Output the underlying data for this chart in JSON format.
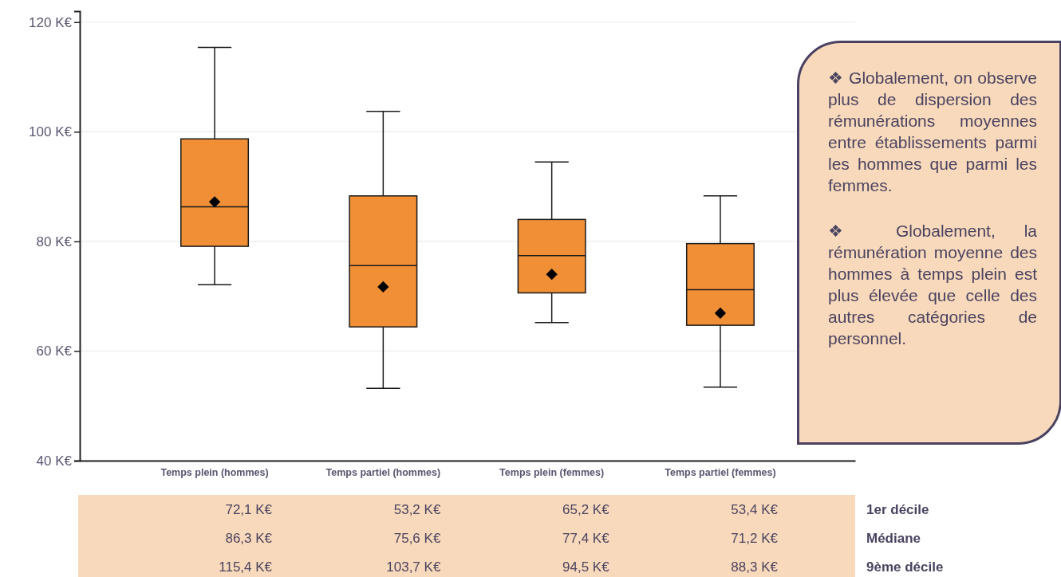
{
  "chart_data": {
    "type": "box",
    "categories": [
      "Temps plein (hommes)",
      "Temps partiel (hommes)",
      "Temps plein (femmes)",
      "Temps partiel (femmes)"
    ],
    "boxes": [
      {
        "low": 72.1,
        "q1": 79.1,
        "median": 86.3,
        "q3": 98.7,
        "high": 115.4,
        "mean": 87.2
      },
      {
        "low": 53.2,
        "q1": 64.4,
        "median": 75.6,
        "q3": 88.3,
        "high": 103.7,
        "mean": 71.7
      },
      {
        "low": 65.2,
        "q1": 70.6,
        "median": 77.4,
        "q3": 84.0,
        "high": 94.5,
        "mean": 74.0
      },
      {
        "low": 53.4,
        "q1": 64.7,
        "median": 71.2,
        "q3": 79.6,
        "high": 88.3,
        "mean": 66.9
      }
    ],
    "color": "#f08f36",
    "marker": "diamond",
    "grid": "y",
    "ylim": [
      40,
      122
    ],
    "yticks": [
      {
        "value": 40,
        "label": "40 K€"
      },
      {
        "value": 60,
        "label": "60 K€"
      },
      {
        "value": 80,
        "label": "80 K€"
      },
      {
        "value": 100,
        "label": "100 K€"
      },
      {
        "value": 120,
        "label": "120 K€"
      }
    ],
    "annotations": [
      "❖ Globalement, on observe plus de dispersion des rémunérations moyennes entre établissements parmi les hommes que parmi les femmes.",
      "❖ Globalement, la rémunération moyenne des hommes à temps plein est plus élevée que celle des autres catégories de personnel.",
      "72,1 K€",
      "53,2 K€",
      "65,2 K€",
      "53,4 K€",
      "1er décile",
      "86,3 K€",
      "75,6 K€",
      "77,4 K€",
      "71,2 K€",
      "Médiane",
      "115,4 K€",
      "103,7 K€",
      "94,5 K€",
      "88,3 K€",
      "9ème décile"
    ]
  }
}
